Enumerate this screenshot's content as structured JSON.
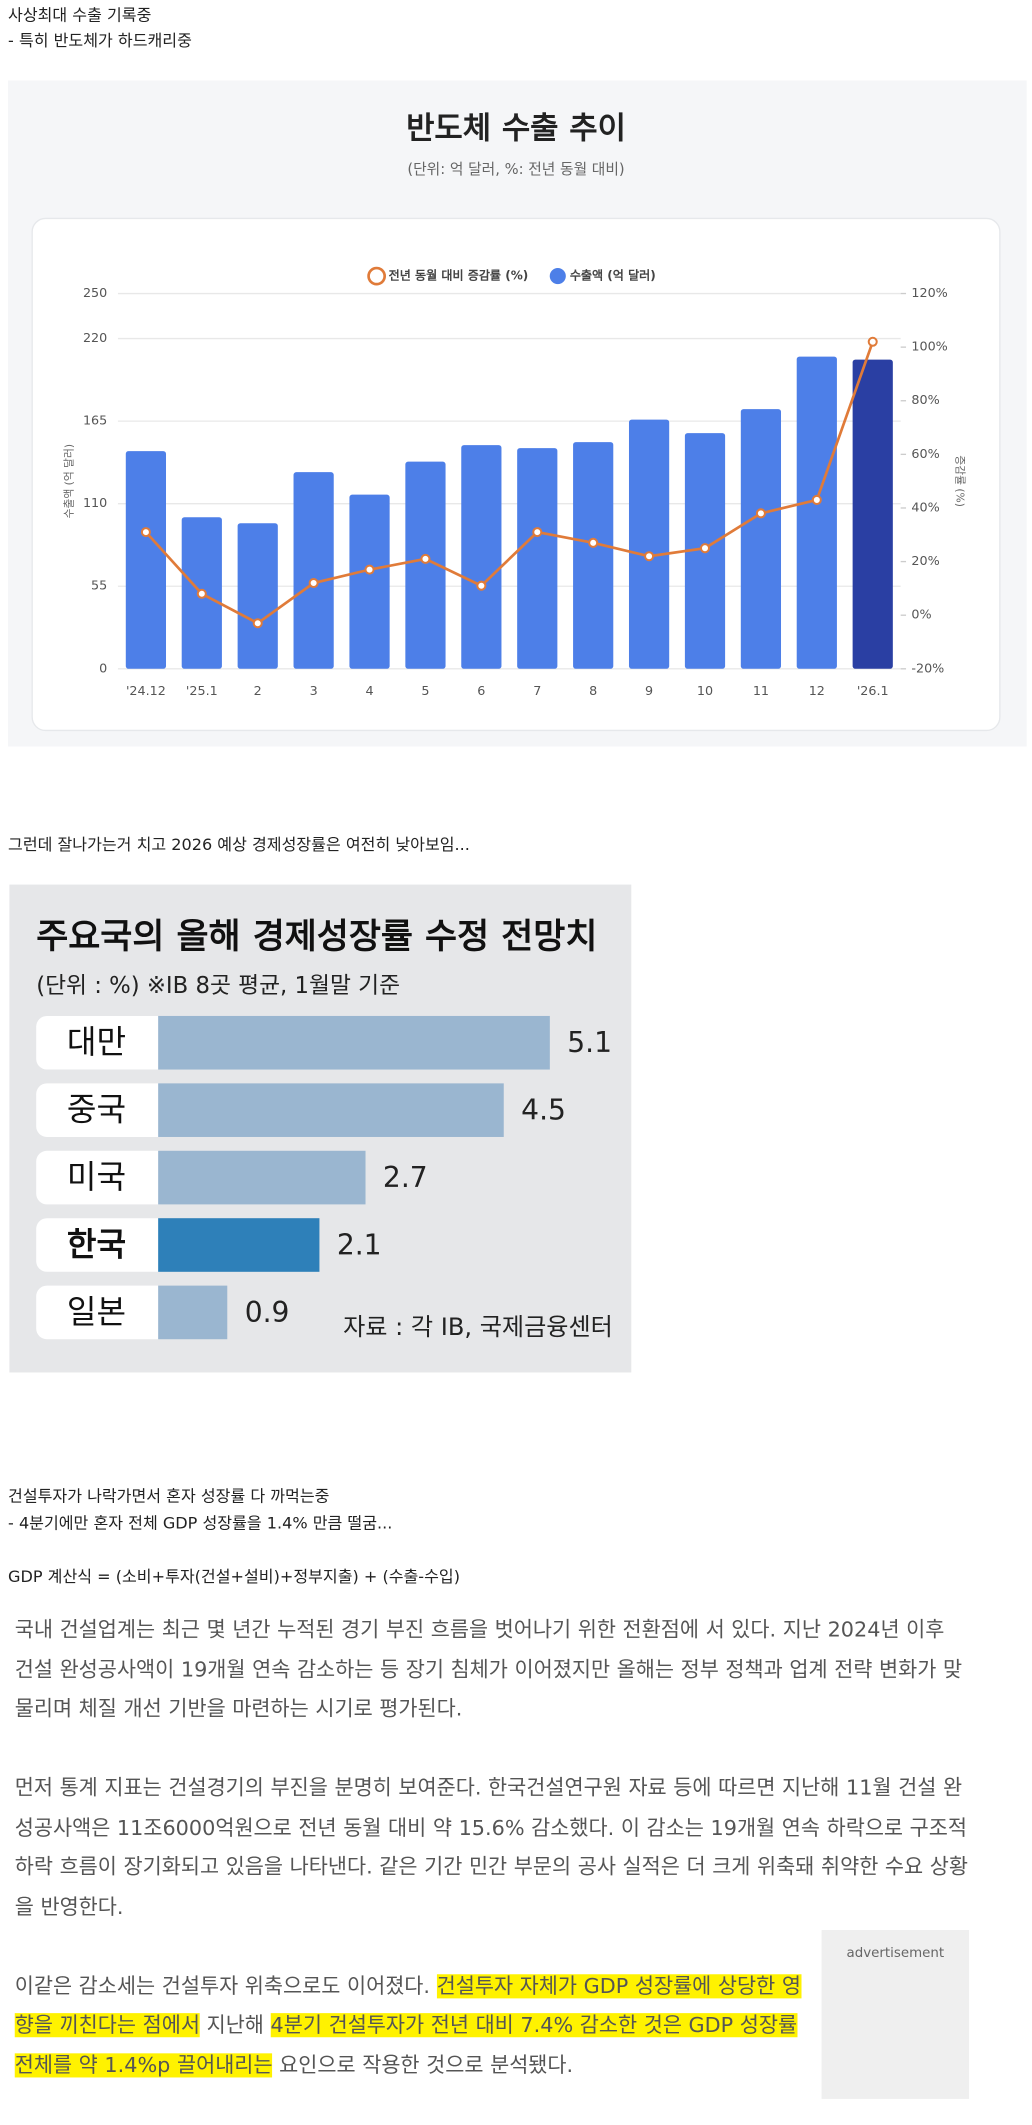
{
  "post": {
    "intro": [
      "사상최대 수출 기록중",
      "- 특히 반도체가 하드캐리중"
    ],
    "middle": "그런데 잘나가는거 치고 2026 예상 경제성장률은 여전히 낮아보임...",
    "outro": [
      "건설투자가 나락가면서 혼자 성장률 다 까먹는중",
      "- 4분기에만 혼자 전체 GDP 성장률을 1.4% 만큼 떨굼..."
    ],
    "formula": "GDP 계산식 = (소비+투자(건설+설비)+정부지출) + (수출-수입)"
  },
  "chart_data": [
    {
      "type": "bar",
      "title": "반도체 수출 추이",
      "subtitle": "(단위: 억 달러, %: 전년 동월 대비)",
      "categories": [
        "'24.12",
        "'25.1",
        "2",
        "3",
        "4",
        "5",
        "6",
        "7",
        "8",
        "9",
        "10",
        "11",
        "12",
        "'26.1"
      ],
      "series": [
        {
          "name": "전년 동월 대비 증감률 (%)",
          "type": "line",
          "axis": "y2",
          "color": "#e07b39",
          "values": [
            31,
            8,
            -3,
            12,
            17,
            21,
            11,
            31,
            27,
            22,
            25,
            38,
            43,
            102
          ]
        },
        {
          "name": "수출액 (억 달러)",
          "type": "bar",
          "color": "#4d7fe8",
          "colors": [
            "#4d7fe8",
            "#4d7fe8",
            "#4d7fe8",
            "#4d7fe8",
            "#4d7fe8",
            "#4d7fe8",
            "#4d7fe8",
            "#4d7fe8",
            "#4d7fe8",
            "#4d7fe8",
            "#4d7fe8",
            "#4d7fe8",
            "#4d7fe8",
            "#2a3fa3"
          ],
          "values": [
            145,
            101,
            97,
            131,
            116,
            138,
            149,
            147,
            151,
            166,
            157,
            173,
            208,
            206
          ]
        }
      ],
      "ylabel": "수출액 (억 달러)",
      "y2label": "증감률 (%)",
      "ylim": [
        0,
        250
      ],
      "yticks": [
        0,
        55,
        110,
        165,
        220,
        250
      ],
      "y2lim": [
        -20,
        120
      ],
      "y2ticks": [
        {
          "value": -20,
          "label": "-20%"
        },
        {
          "value": 0,
          "label": "0%"
        },
        {
          "value": 20,
          "label": "20%"
        },
        {
          "value": 40,
          "label": "40%"
        },
        {
          "value": 60,
          "label": "60%"
        },
        {
          "value": 80,
          "label": "80%"
        },
        {
          "value": 100,
          "label": "100%"
        },
        {
          "value": 120,
          "label": "120%"
        }
      ],
      "grid": true,
      "legend": "top"
    },
    {
      "type": "barh",
      "title": "주요국의 올해 경제성장률 수정 전망치",
      "subtitle": "(단위 : %)  ※IB 8곳 평균, 1월말 기준",
      "categories": [
        "대만",
        "중국",
        "미국",
        "한국",
        "일본"
      ],
      "values": [
        5.1,
        4.5,
        2.7,
        2.1,
        0.9
      ],
      "colors": [
        "#9ab6d0",
        "#9ab6d0",
        "#9ab6d0",
        "#2e80b9",
        "#9ab6d0"
      ],
      "source": "자료 : 각 IB, 국제금융센터"
    }
  ],
  "article": {
    "paragraphs": [
      [
        {
          "text": "국내 건설업계는 최근 몇 년간 누적된 경기 부진 흐름을 벗어나기 위한 전환점에 서 있다. 지난 2024년 이후 건설 완성공사액이 19개월 연속 감소하는 등 장기 침체가 이어졌지만 올해는 정부 정책과 업계 전략 변화가 맞물리며 체질 개선 기반을 마련하는 시기로 평가된다.",
          "highlight": false
        }
      ],
      [
        {
          "text": "먼저 통계 지표는 건설경기의 부진을 분명히 보여준다. 한국건설연구원 자료 등에 따르면 지난해 11월 건설 완성공사액은 11조6000억원으로 전년 동월 대비 약 15.6% 감소했다. 이 감소는 19개월 연속 하락으로 구조적 하락 흐름이 장기화되고 있음을 나타낸다. 같은 기간 민간 부문의 공사 실적은 더 크게 위축돼 취약한 수요 상황을 반영한다.",
          "highlight": false
        }
      ],
      [
        {
          "text": "이같은 감소세는 건설투자 위축으로도 이어졌다. ",
          "highlight": false
        },
        {
          "text": "건설투자 자체가 GDP 성장률에 상당한 영향을 끼친다는 점에서",
          "highlight": true
        },
        {
          "text": " 지난해 ",
          "highlight": false
        },
        {
          "text": "4분기 건설투자가 전년 대비 7.4% 감소한 것은 GDP 성장률 전체를 약 1.4%p 끌어내리는",
          "highlight": true
        },
        {
          "text": " 요인으로 작용한 것으로 분석됐다.",
          "highlight": false
        }
      ]
    ],
    "ad": "advertisement"
  }
}
